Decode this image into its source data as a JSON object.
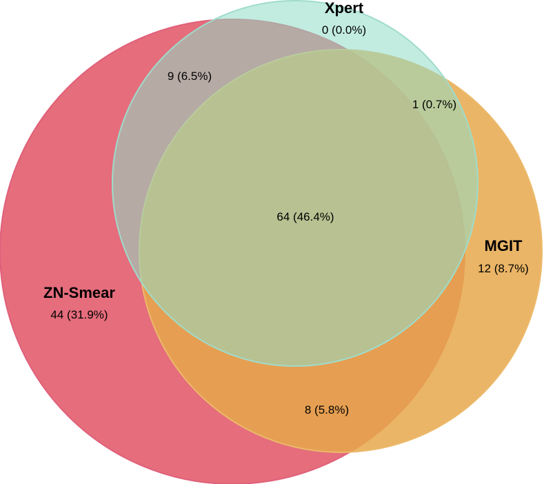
{
  "colors": {
    "zn_smear": "#e05465",
    "mgit": "#e6a84b",
    "xpert": "#8fdcc6",
    "zn_smear_edge": "#e0607a",
    "mgit_edge": "#ecb96a",
    "xpert_edge": "#9fdccb",
    "text": "#000000",
    "background": "#ffffff"
  },
  "sets": {
    "zn_smear": {
      "title": "ZN-Smear",
      "unique": "44 (31.9%)"
    },
    "mgit": {
      "title": "MGIT",
      "unique": "12 (8.7%)"
    },
    "xpert": {
      "title": "Xpert",
      "unique": "0 (0.0%)"
    }
  },
  "intersections": {
    "zn_xpert": "9 (6.5%)",
    "mgit_xpert": "1 (0.7%)",
    "zn_mgit": "8 (5.8%)",
    "all_three": "64 (46.4%)"
  }
}
